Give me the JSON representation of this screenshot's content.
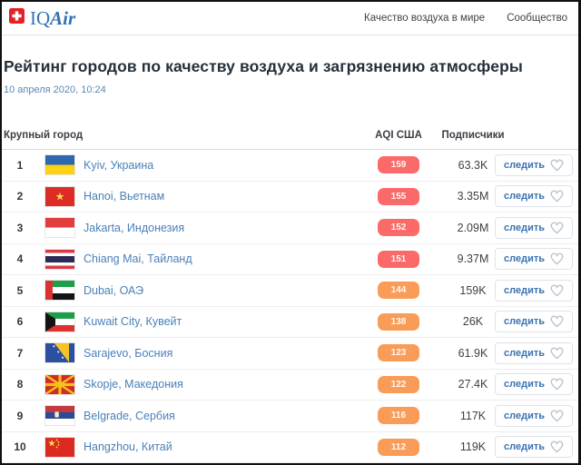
{
  "header": {
    "logo": {
      "iq": "IQ",
      "air": "Air",
      "flag_icon": "swiss-flag-icon"
    },
    "nav": [
      {
        "label": "Качество воздуха в мире"
      },
      {
        "label": "Сообщество"
      }
    ]
  },
  "page": {
    "title": "Рейтинг городов по качеству воздуха и загрязнению атмосферы",
    "timestamp": "10 апреля 2020, 10:24"
  },
  "table": {
    "columns": {
      "city": "Крупный город",
      "aqi": "AQI США",
      "followers": "Подписчики"
    },
    "follow_label": "следить",
    "aqi_colors": {
      "unhealthy": "#fa6a69",
      "unhealthy_sensitive": "#f99c58"
    },
    "rows": [
      {
        "rank": "1",
        "flag": "ukraine",
        "city": "Kyiv, Украина",
        "aqi": "159",
        "level": "unhealthy",
        "followers": "63.3K"
      },
      {
        "rank": "2",
        "flag": "vietnam",
        "city": "Hanoi, Вьетнам",
        "aqi": "155",
        "level": "unhealthy",
        "followers": "3.35M"
      },
      {
        "rank": "3",
        "flag": "indonesia",
        "city": "Jakarta, Индонезия",
        "aqi": "152",
        "level": "unhealthy",
        "followers": "2.09M"
      },
      {
        "rank": "4",
        "flag": "thailand",
        "city": "Chiang Mai, Тайланд",
        "aqi": "151",
        "level": "unhealthy",
        "followers": "9.37M"
      },
      {
        "rank": "5",
        "flag": "uae",
        "city": "Dubai, ОАЭ",
        "aqi": "144",
        "level": "unhealthy_sensitive",
        "followers": "159K"
      },
      {
        "rank": "6",
        "flag": "kuwait",
        "city": "Kuwait City, Кувейт",
        "aqi": "138",
        "level": "unhealthy_sensitive",
        "followers": "26K"
      },
      {
        "rank": "7",
        "flag": "bosnia",
        "city": "Sarajevo, Босния",
        "aqi": "123",
        "level": "unhealthy_sensitive",
        "followers": "61.9K"
      },
      {
        "rank": "8",
        "flag": "macedonia",
        "city": "Skopje, Македония",
        "aqi": "122",
        "level": "unhealthy_sensitive",
        "followers": "27.4K"
      },
      {
        "rank": "9",
        "flag": "serbia",
        "city": "Belgrade, Сербия",
        "aqi": "116",
        "level": "unhealthy_sensitive",
        "followers": "117K"
      },
      {
        "rank": "10",
        "flag": "china",
        "city": "Hangzhou, Китай",
        "aqi": "112",
        "level": "unhealthy_sensitive",
        "followers": "119K"
      }
    ]
  }
}
